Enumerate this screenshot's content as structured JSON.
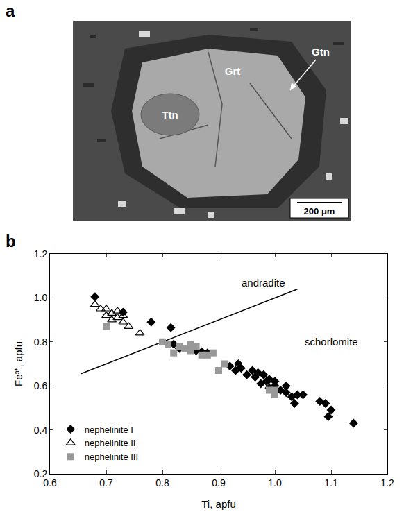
{
  "panel_a": {
    "label": "a",
    "labels": [
      "Grt",
      "Ttn",
      "Gtn"
    ],
    "scale_bar": "200 μm"
  },
  "chart_data": {
    "type": "scatter",
    "panel_label": "b",
    "x_label": "Ti, apfu",
    "y_label": "Fe³⁺, apfu",
    "xlim": [
      0.6,
      1.2
    ],
    "xticks": [
      0.6,
      0.7,
      0.8,
      0.9,
      {
        "value": 1,
        "label": "1.0"
      },
      1.1,
      1.2
    ],
    "ylim": [
      0.2,
      1.2
    ],
    "yticks": [
      0.2,
      0.4,
      0.6,
      0.8,
      {
        "value": 1,
        "label": "1.0"
      },
      1.2
    ],
    "grid": false,
    "legend": "lower left",
    "annotations": [
      {
        "text": "andradite",
        "x": 0.98,
        "y": 1.07
      },
      {
        "text": "schorlomite",
        "x": 1.1,
        "y": 0.8
      }
    ],
    "lines": [
      {
        "x": [
          0.655,
          1.04
        ],
        "y": [
          0.655,
          1.04
        ],
        "color": "#000000"
      }
    ],
    "series": [
      {
        "name": "nephelinite I",
        "color": "#000000",
        "marker": "diamond",
        "x": [
          0.68,
          0.73,
          0.78,
          0.815,
          0.82,
          0.83,
          0.85,
          0.86,
          0.87,
          0.88,
          0.92,
          0.93,
          0.935,
          0.94,
          0.95,
          0.96,
          0.965,
          0.97,
          0.975,
          0.98,
          0.985,
          0.99,
          0.99,
          1.0,
          1.0,
          1.01,
          1.02,
          1.02,
          1.03,
          1.035,
          1.04,
          1.05,
          1.08,
          1.09,
          1.1,
          1.095,
          1.14
        ],
        "values": [
          1.005,
          0.935,
          0.89,
          0.865,
          0.79,
          0.77,
          0.77,
          0.76,
          0.755,
          0.75,
          0.69,
          0.67,
          0.7,
          0.68,
          0.65,
          0.67,
          0.64,
          0.66,
          0.61,
          0.65,
          0.62,
          0.63,
          0.59,
          0.62,
          0.6,
          0.58,
          0.6,
          0.57,
          0.55,
          0.52,
          0.56,
          0.56,
          0.53,
          0.52,
          0.49,
          0.46,
          0.43
        ]
      },
      {
        "name": "nephelinite II",
        "color": "#000000",
        "marker": "triangle-up-open",
        "x": [
          0.68,
          0.69,
          0.7,
          0.7,
          0.71,
          0.71,
          0.72,
          0.72,
          0.73,
          0.73,
          0.74,
          0.76
        ],
        "values": [
          0.97,
          0.95,
          0.95,
          0.92,
          0.9,
          0.93,
          0.94,
          0.91,
          0.89,
          0.92,
          0.87,
          0.84
        ]
      },
      {
        "name": "nephelinite III",
        "color": "#999999",
        "marker": "square",
        "x": [
          0.7,
          0.8,
          0.81,
          0.82,
          0.83,
          0.84,
          0.85,
          0.85,
          0.86,
          0.87,
          0.88,
          0.89,
          0.9,
          0.91,
          0.99,
          1.0,
          1.0
        ],
        "values": [
          0.87,
          0.8,
          0.79,
          0.75,
          0.78,
          0.77,
          0.79,
          0.76,
          0.78,
          0.74,
          0.74,
          0.75,
          0.67,
          0.7,
          0.58,
          0.58,
          0.56
        ]
      }
    ]
  }
}
